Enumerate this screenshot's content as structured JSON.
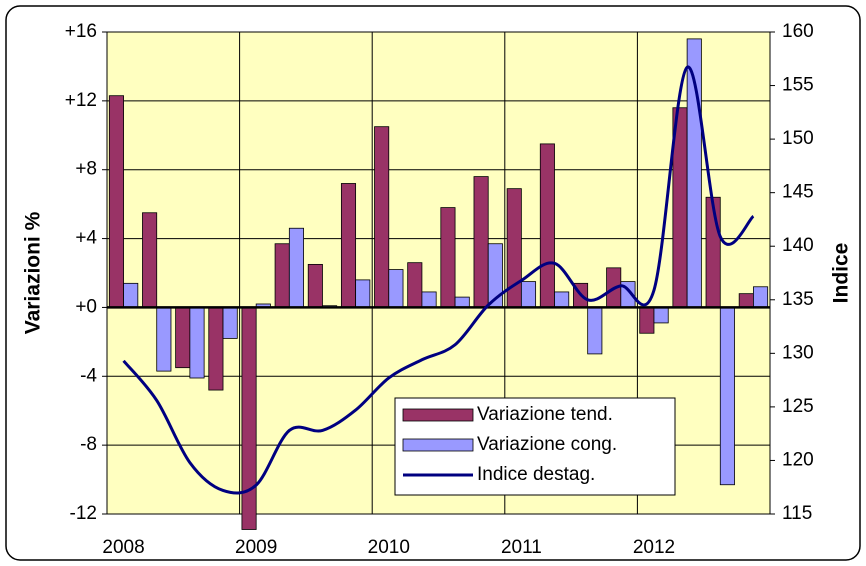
{
  "chart_data": {
    "type": "bar",
    "categories": [
      "2008",
      null,
      null,
      null,
      "2009",
      null,
      null,
      null,
      "2010",
      null,
      null,
      null,
      "2011",
      null,
      null,
      null,
      "2012",
      null,
      null,
      null
    ],
    "series": [
      {
        "name": "Variazione tend.",
        "color": "#993366",
        "values": [
          12.3,
          5.5,
          -3.5,
          -4.8,
          -12.9,
          3.7,
          2.5,
          7.2,
          10.5,
          2.6,
          5.8,
          7.6,
          6.9,
          9.5,
          1.4,
          2.3,
          -1.5,
          11.6,
          6.4,
          0.8
        ]
      },
      {
        "name": "Variazione cong.",
        "color": "#9999ff",
        "values": [
          1.4,
          -3.7,
          -4.1,
          -1.8,
          0.2,
          4.6,
          0.1,
          1.6,
          2.2,
          0.9,
          0.6,
          3.7,
          1.5,
          0.9,
          -2.7,
          1.5,
          -0.9,
          15.6,
          -10.3,
          1.2
        ]
      },
      {
        "name": "Indice destag.",
        "color": "#000080",
        "axis": "y2",
        "values": [
          129.3,
          125.6,
          119.8,
          117.2,
          117.7,
          122.8,
          122.8,
          124.7,
          127.7,
          129.4,
          130.8,
          134.5,
          136.8,
          138.4,
          135.0,
          136.3,
          135.9,
          156.7,
          140.9,
          142.8
        ]
      }
    ],
    "ylabel": "Variazioni %",
    "y2label": "Indice",
    "ylim": [
      -12,
      16
    ],
    "yticks": [
      {
        "value": 16,
        "label": "+16"
      },
      {
        "value": 12,
        "label": "+12"
      },
      {
        "value": 8,
        "label": "+8"
      },
      {
        "value": 4,
        "label": "+4"
      },
      {
        "value": 0,
        "label": "+0"
      },
      -4,
      -8,
      -12
    ],
    "y2lim": [
      115,
      160
    ],
    "y2ticks": [
      115,
      120,
      125,
      130,
      135,
      140,
      145,
      150,
      155,
      160
    ],
    "grid": true,
    "legend": "lower right"
  }
}
